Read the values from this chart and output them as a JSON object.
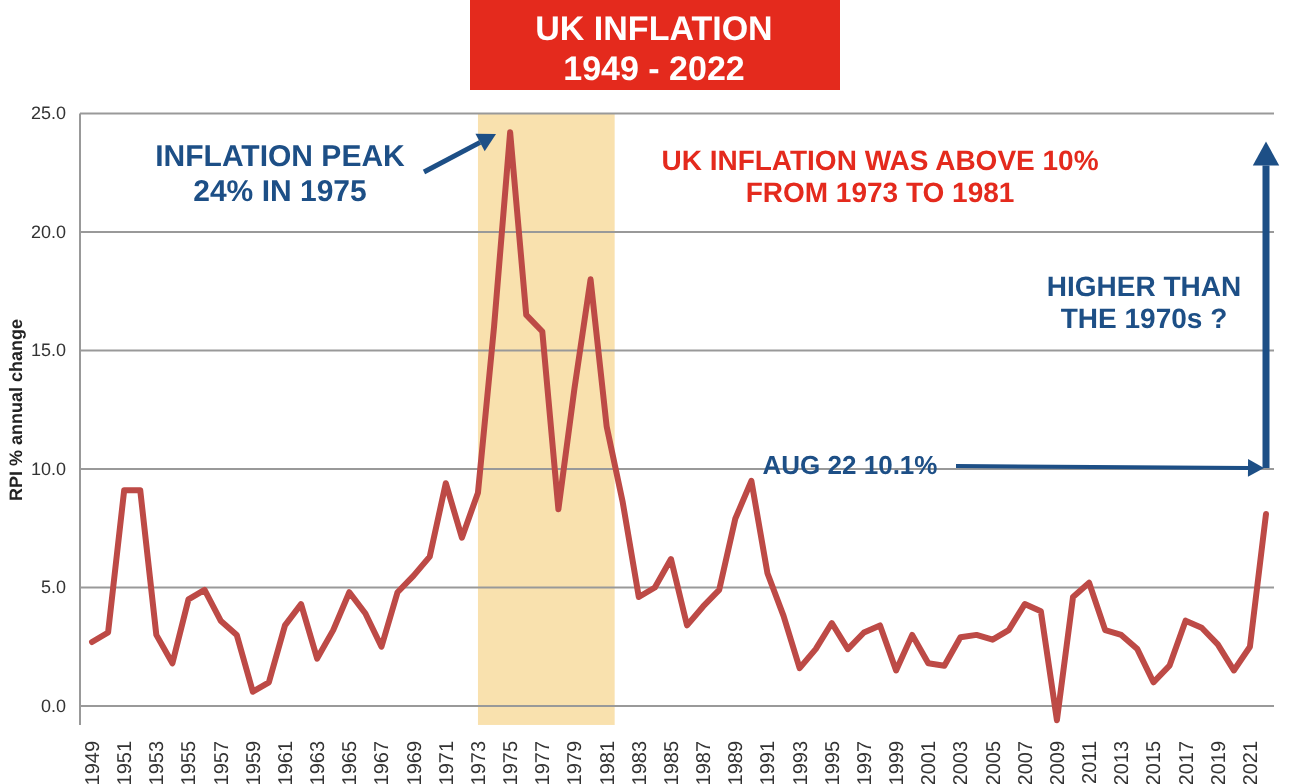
{
  "chart_data": {
    "type": "line",
    "title": "UK INFLATION",
    "subtitle": "1949 - 2022",
    "ylabel": "RPI % annual change",
    "categories": [
      "1949",
      null,
      "1951",
      null,
      "1953",
      null,
      "1955",
      null,
      "1957",
      null,
      "1959",
      null,
      "1961",
      null,
      "1963",
      null,
      "1965",
      null,
      "1967",
      null,
      "1969",
      null,
      "1971",
      null,
      "1973",
      null,
      "1975",
      null,
      "1977",
      null,
      "1979",
      null,
      "1981",
      null,
      "1983",
      null,
      "1985",
      null,
      "1987",
      null,
      "1989",
      null,
      "1991",
      null,
      "1993",
      null,
      "1995",
      null,
      "1997",
      null,
      "1999",
      null,
      "2001",
      null,
      "2003",
      null,
      "2005",
      null,
      "2007",
      null,
      "2009",
      null,
      "2011",
      null,
      "2013",
      null,
      "2015",
      null,
      "2017",
      null,
      "2019",
      null,
      "2021",
      null
    ],
    "series": [
      {
        "color": "#bd4a46",
        "values": [
          2.7,
          3.1,
          9.1,
          9.1,
          3.0,
          1.8,
          4.5,
          4.9,
          3.6,
          3.0,
          0.6,
          1.0,
          3.4,
          4.3,
          2.0,
          3.2,
          4.8,
          3.9,
          2.5,
          4.8,
          5.5,
          6.3,
          9.4,
          7.1,
          9.0,
          16.0,
          24.2,
          16.5,
          15.8,
          8.3,
          13.4,
          18.0,
          11.8,
          8.6,
          4.6,
          5.0,
          6.2,
          3.4,
          4.2,
          4.9,
          7.9,
          9.5,
          5.6,
          3.8,
          1.6,
          2.4,
          3.5,
          2.4,
          3.1,
          3.4,
          1.5,
          3.0,
          1.8,
          1.7,
          2.9,
          3.0,
          2.8,
          3.2,
          4.3,
          4.0,
          -0.6,
          4.6,
          5.2,
          3.2,
          3.0,
          2.4,
          1.0,
          1.7,
          3.6,
          3.3,
          2.6,
          1.5,
          2.5,
          8.1
        ]
      }
    ],
    "ylim": [
      -0.8,
      25
    ],
    "yticks": [
      {
        "value": 0,
        "label": "0.0"
      },
      {
        "value": 5,
        "label": "5.0"
      },
      {
        "value": 10,
        "label": "10.0"
      },
      {
        "value": 15,
        "label": "15.0"
      },
      {
        "value": 20,
        "label": "20.0"
      },
      {
        "value": 25,
        "label": "25.0"
      }
    ],
    "grid": "y",
    "line_style": "solid",
    "bands": [
      {
        "axis": "x",
        "from": "1973",
        "to": "1981",
        "color": "#f8d99a"
      }
    ],
    "annotations": [
      "INFLATION PEAK\n24% IN 1975",
      "UK INFLATION WAS ABOVE 10%\nFROM 1973 TO 1981",
      "HIGHER THAN\nTHE 1970s ?",
      "AUG 22 10.1%"
    ]
  }
}
